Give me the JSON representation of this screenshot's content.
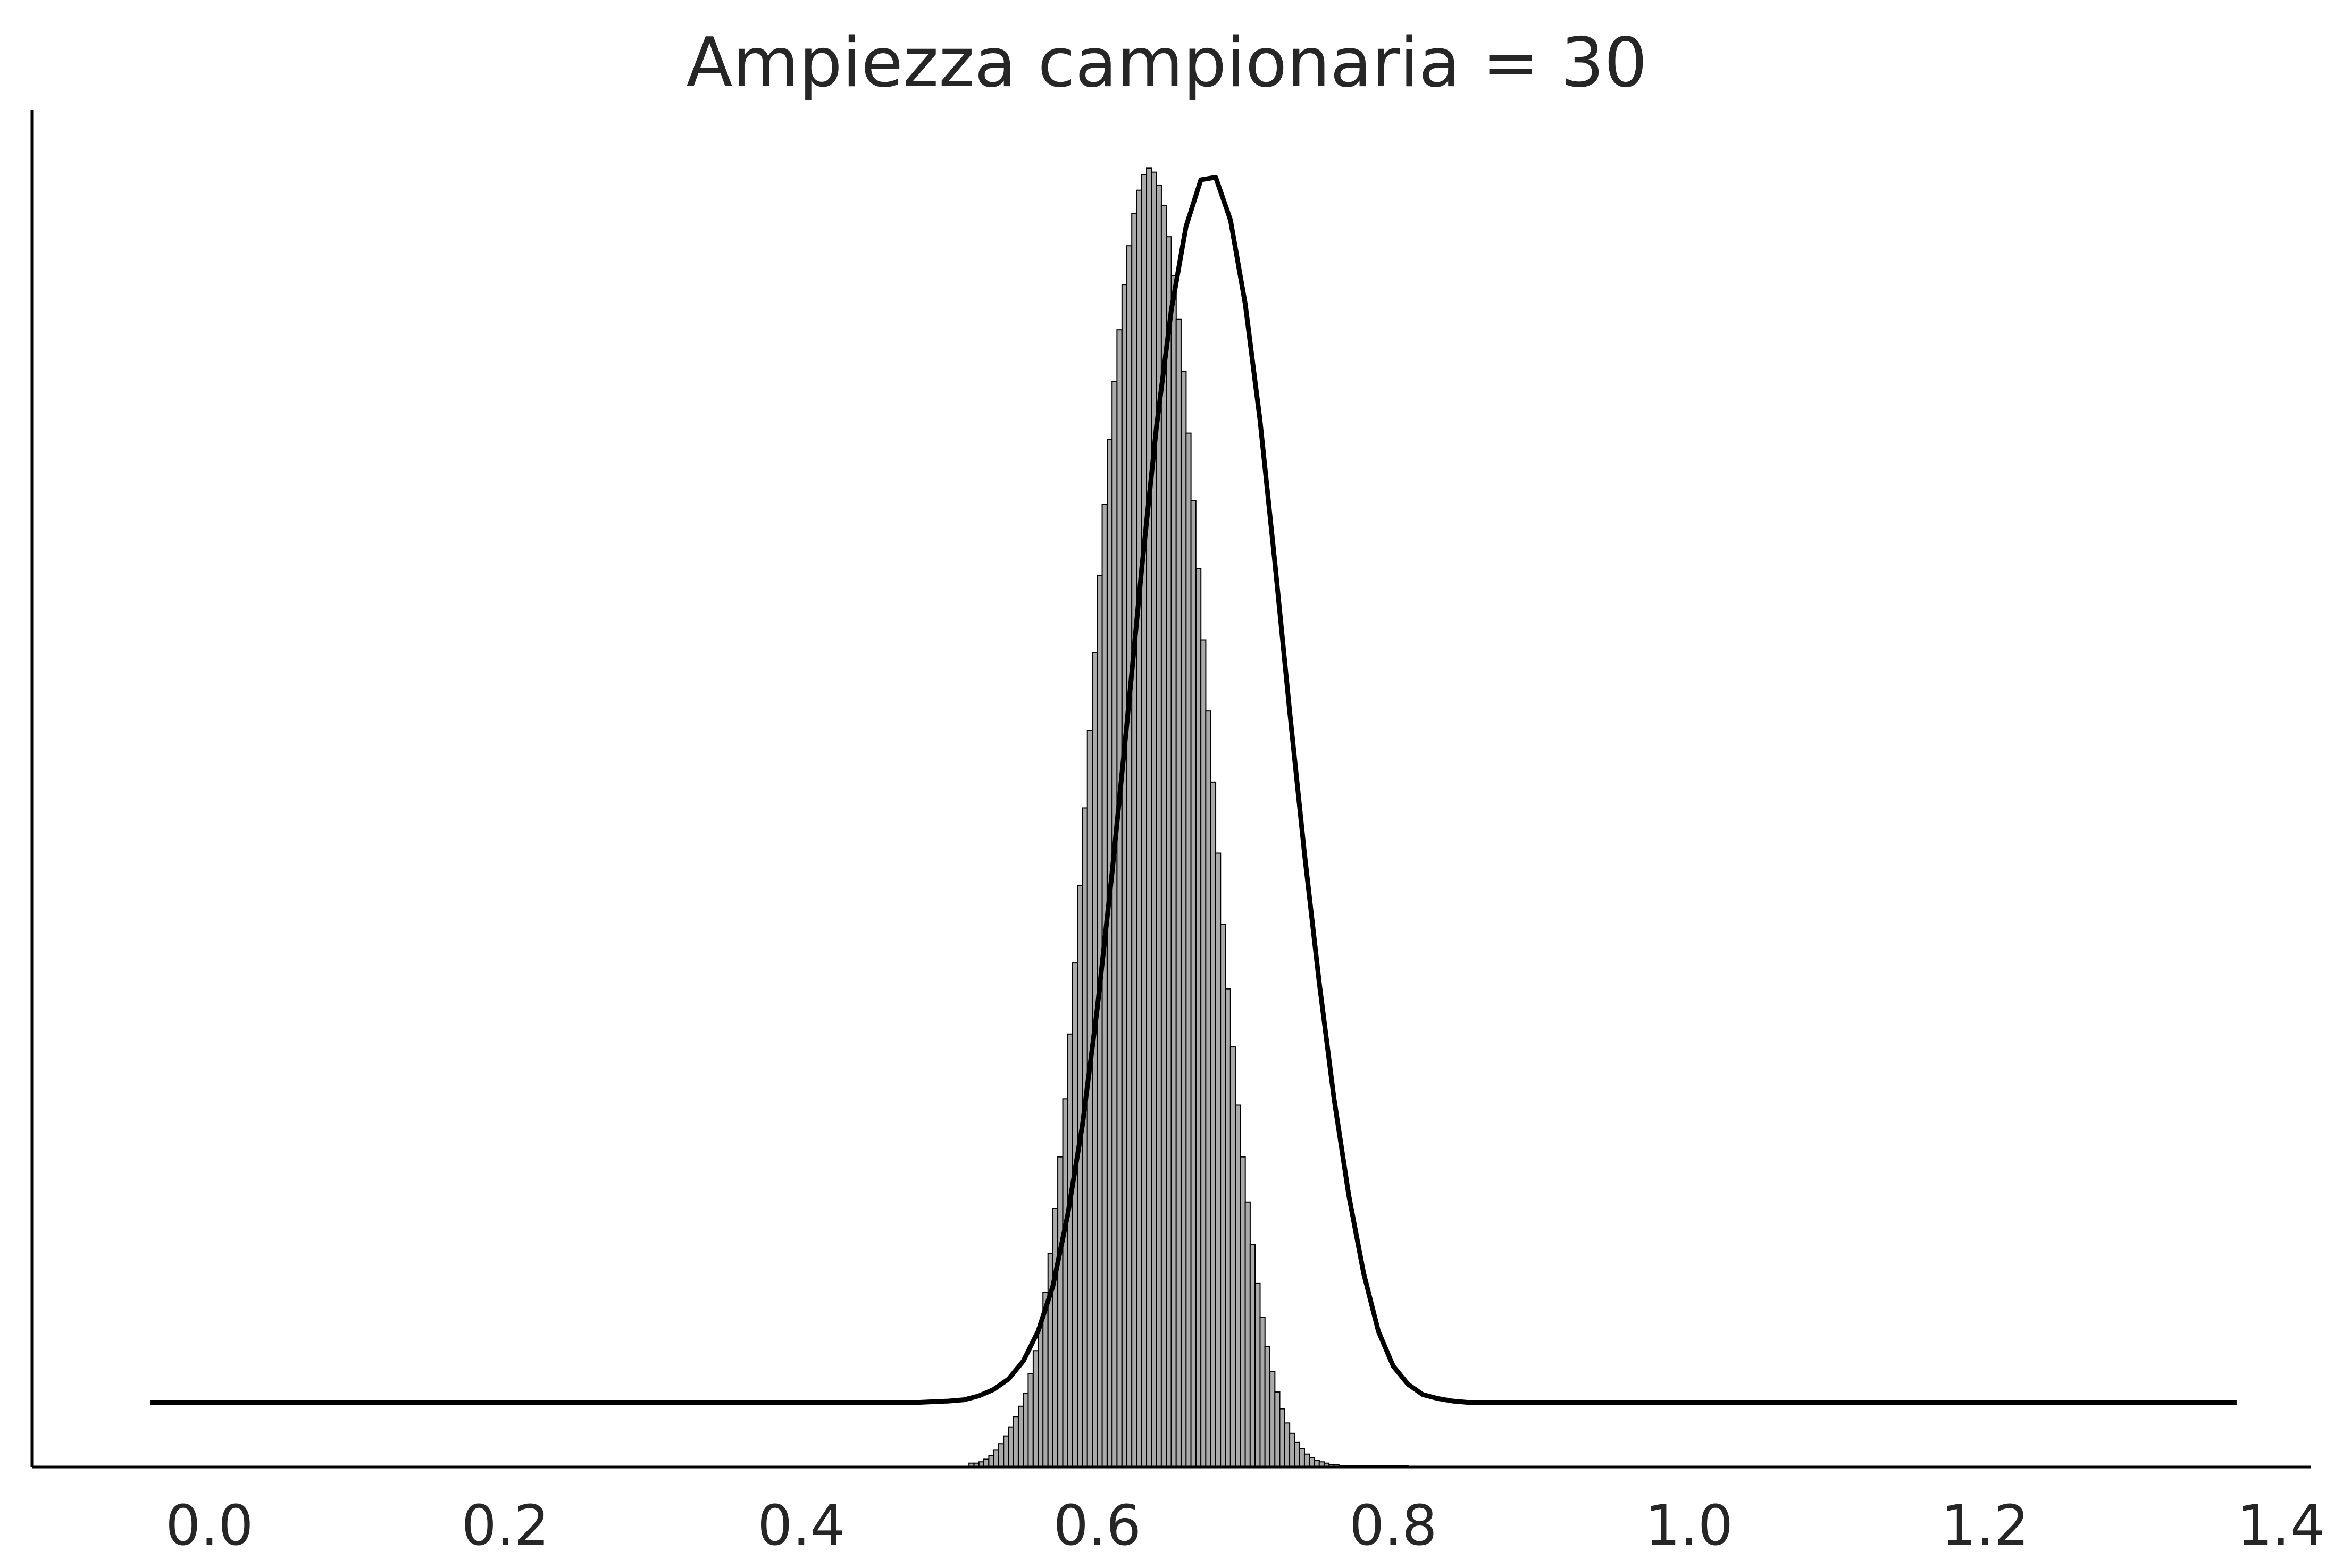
{
  "chart_data": {
    "type": "histogram",
    "title": "Ampiezza campionaria = 30",
    "xlabel": "",
    "ylabel": "",
    "xlim": [
      -0.12,
      1.42
    ],
    "ylim": [
      0,
      10.5
    ],
    "grid": false,
    "x_ticks": [
      {
        "value": 0.0,
        "label": "0.0"
      },
      {
        "value": 0.2,
        "label": "0.2"
      },
      {
        "value": 0.4,
        "label": "0.4"
      },
      {
        "value": 0.6,
        "label": "0.6"
      },
      {
        "value": 0.8,
        "label": "0.8"
      },
      {
        "value": 1.0,
        "label": "1.0"
      },
      {
        "value": 1.2,
        "label": "1.2"
      },
      {
        "value": 1.4,
        "label": "1.4"
      }
    ],
    "histogram": {
      "bin_width": 0.00333,
      "bin_starts": [
        0.5133,
        0.5167,
        0.52,
        0.5233,
        0.5267,
        0.53,
        0.5333,
        0.5367,
        0.54,
        0.5433,
        0.5467,
        0.55,
        0.5533,
        0.5567,
        0.56,
        0.5633,
        0.5667,
        0.57,
        0.5733,
        0.5767,
        0.58,
        0.5833,
        0.5867,
        0.59,
        0.5933,
        0.5967,
        0.6,
        0.6033,
        0.6067,
        0.61,
        0.6133,
        0.6167,
        0.62,
        0.6233,
        0.6267,
        0.63,
        0.6333,
        0.6367,
        0.64,
        0.6433,
        0.6467,
        0.65,
        0.6533,
        0.6567,
        0.66,
        0.6633,
        0.6667,
        0.67,
        0.6733,
        0.6767,
        0.68,
        0.6833,
        0.6867,
        0.69,
        0.6933,
        0.6967,
        0.7,
        0.7033,
        0.7067,
        0.71,
        0.7133,
        0.7167,
        0.72,
        0.7233,
        0.7267,
        0.73,
        0.7333,
        0.7367,
        0.74,
        0.7433,
        0.7467,
        0.75,
        0.7533,
        0.7567,
        0.76,
        0.7633,
        0.7667,
        0.77,
        0.7733,
        0.7767,
        0.78,
        0.7833,
        0.7867,
        0.79,
        0.7933,
        0.7967,
        0.8,
        0.8033,
        0.8067
      ],
      "densities": [
        0.03,
        0.03,
        0.04,
        0.06,
        0.09,
        0.13,
        0.18,
        0.24,
        0.31,
        0.39,
        0.47,
        0.57,
        0.72,
        0.9,
        1.1,
        1.35,
        1.65,
        2.0,
        2.4,
        2.85,
        3.35,
        3.9,
        4.5,
        5.1,
        5.7,
        6.3,
        6.9,
        7.45,
        7.95,
        8.4,
        8.8,
        9.15,
        9.45,
        9.7,
        9.88,
        10.0,
        10.05,
        10.02,
        9.92,
        9.76,
        9.52,
        9.22,
        8.88,
        8.48,
        8.0,
        7.48,
        6.95,
        6.4,
        5.85,
        5.3,
        4.75,
        4.2,
        3.7,
        3.25,
        2.8,
        2.4,
        2.05,
        1.72,
        1.42,
        1.16,
        0.93,
        0.74,
        0.58,
        0.45,
        0.34,
        0.26,
        0.19,
        0.14,
        0.1,
        0.07,
        0.05,
        0.04,
        0.03,
        0.02,
        0.02,
        0.01,
        0.01,
        0.01,
        0.01,
        0.01,
        0.01,
        0.01,
        0.01,
        0.01,
        0.01,
        0.01,
        0.01,
        0.01,
        0.01
      ],
      "fill_color": "#aaaaaa",
      "edge_color": "#000000"
    },
    "density_curve": {
      "x": [
        -0.04,
        0.0,
        0.1,
        0.2,
        0.3,
        0.4,
        0.45,
        0.48,
        0.5,
        0.51,
        0.52,
        0.53,
        0.54,
        0.55,
        0.56,
        0.57,
        0.58,
        0.59,
        0.6,
        0.61,
        0.62,
        0.63,
        0.64,
        0.65,
        0.66,
        0.67,
        0.68,
        0.69,
        0.7,
        0.71,
        0.72,
        0.73,
        0.74,
        0.75,
        0.76,
        0.77,
        0.78,
        0.79,
        0.8,
        0.81,
        0.82,
        0.83,
        0.84,
        0.85,
        0.87,
        0.9,
        1.0,
        1.2,
        1.37
      ],
      "y": [
        0.5,
        0.5,
        0.5,
        0.5,
        0.5,
        0.5,
        0.5,
        0.5,
        0.51,
        0.52,
        0.55,
        0.6,
        0.68,
        0.82,
        1.05,
        1.4,
        1.95,
        2.65,
        3.55,
        4.6,
        5.75,
        6.95,
        8.05,
        8.95,
        9.6,
        9.96,
        9.98,
        9.65,
        9.0,
        8.1,
        7.0,
        5.85,
        4.75,
        3.75,
        2.85,
        2.1,
        1.5,
        1.05,
        0.78,
        0.64,
        0.56,
        0.53,
        0.51,
        0.5,
        0.5,
        0.5,
        0.5,
        0.5,
        0.5
      ],
      "color": "#000000"
    }
  }
}
